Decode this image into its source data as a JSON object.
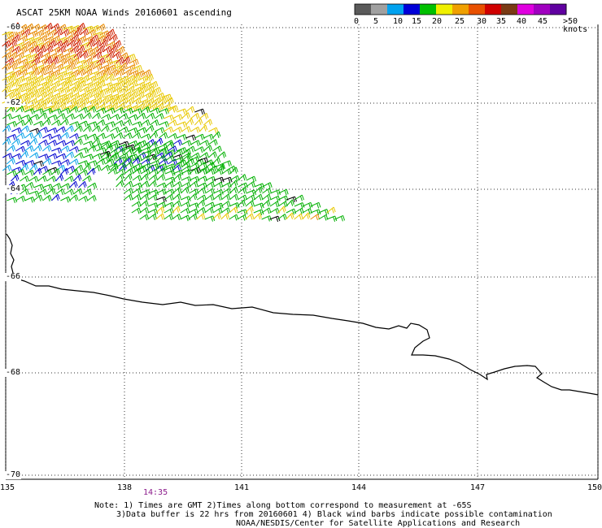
{
  "title": "ASCAT 25KM NOAA Winds 20160601 ascending",
  "colorbar": {
    "colors": [
      "#5a5a5a",
      "#a0a0a0",
      "#00a2f0",
      "#0000d8",
      "#00c000",
      "#f0f000",
      "#f0a000",
      "#e85000",
      "#d00000",
      "#7a3a14",
      "#e000e0",
      "#a000c0",
      "#6000a0"
    ],
    "labels": [
      "0",
      "5",
      "10",
      "15",
      "20",
      "25",
      "30",
      "35",
      "40",
      "45",
      ">50 knots"
    ]
  },
  "map": {
    "lat_labels": [
      "-60",
      "-62",
      "-64",
      "-66",
      "-68",
      "-70"
    ],
    "lon_labels": [
      "135",
      "138",
      "141",
      "144",
      "147",
      "150"
    ],
    "lon_range": [
      135,
      150
    ],
    "lat_range": [
      -60,
      -70
    ],
    "graticule": "dotted",
    "coastline_color": "#000000"
  },
  "pass_time": "14:35",
  "notes": {
    "line1": "Note: 1) Times are GMT 2)Times along bottom correspond to measurement at -65S",
    "line2": "3)Data buffer is 22 hrs from 20160601 4) Black wind barbs indicate possible contamination",
    "line3": "NOAA/NESDIS/Center for Satellite Applications and Research"
  },
  "wind_barb_colors": {
    "orange": "#e88a00",
    "red": "#d02000",
    "yellow": "#e8c800",
    "green": "#00b000",
    "blue": "#0000d0",
    "cyan": "#00a0e8",
    "black": "#000000"
  }
}
